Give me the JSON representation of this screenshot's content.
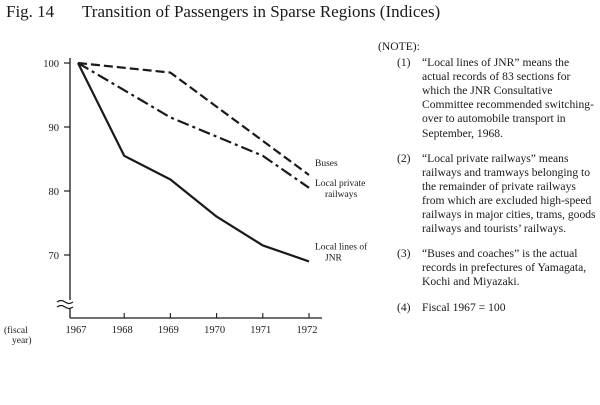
{
  "figure": {
    "number": "Fig. 14",
    "title": "Transition of Passengers in Sparse Regions (Indices)"
  },
  "chart_data": {
    "type": "line",
    "title": "Transition of Passengers in Sparse Regions (Indices)",
    "x": [
      1967,
      1968,
      1969,
      1970,
      1971,
      1972
    ],
    "x_tick_labels": [
      "1967",
      "1968",
      "1969",
      "1970",
      "1971",
      "1972"
    ],
    "xlabel": "(fiscal year)",
    "ylabel": "",
    "y_ticks": [
      70,
      80,
      90,
      100
    ],
    "y_tick_labels": [
      "70",
      "80",
      "90",
      "100"
    ],
    "ylim": [
      62,
      101
    ],
    "axis_break": true,
    "grid": false,
    "series": [
      {
        "name": "Buses",
        "style": "dashed",
        "x": [
          1967,
          1969,
          1972
        ],
        "values": [
          100,
          98.5,
          82.5
        ]
      },
      {
        "name": "Local private railways",
        "style": "dash-dot",
        "x": [
          1967,
          1969,
          1970,
          1971,
          1972
        ],
        "values": [
          100,
          91.5,
          88.5,
          85.5,
          80.5
        ]
      },
      {
        "name": "Local lines of JNR",
        "style": "solid",
        "x": [
          1967,
          1968,
          1969,
          1970,
          1971,
          1972
        ],
        "values": [
          100,
          85.5,
          81.8,
          76,
          71.5,
          69
        ]
      }
    ],
    "series_labels": [
      {
        "series": 0,
        "lines": [
          "Buses"
        ]
      },
      {
        "series": 1,
        "lines": [
          "Local private",
          "railways"
        ]
      },
      {
        "series": 2,
        "lines": [
          "Local lines of",
          "JNR"
        ]
      }
    ]
  },
  "notes": {
    "heading": "(NOTE):",
    "items": [
      {
        "num": "(1)",
        "text": "“Local lines of JNR” means the actual records of 83 sections for which the JNR Consultative Committee recommended switching-over to automobile transport in September, 1968."
      },
      {
        "num": "(2)",
        "text": "“Local private railways” means railways and tramways belonging to the remainder of private railways from which are excluded high-speed railways in major cities, trams, goods railways and tourists’ railways."
      },
      {
        "num": "(3)",
        "text": "“Buses and coaches” is the actual records in prefectures of Yamagata, Kochi and Miyazaki."
      },
      {
        "num": "(4)",
        "text": "Fiscal 1967 = 100"
      }
    ]
  }
}
